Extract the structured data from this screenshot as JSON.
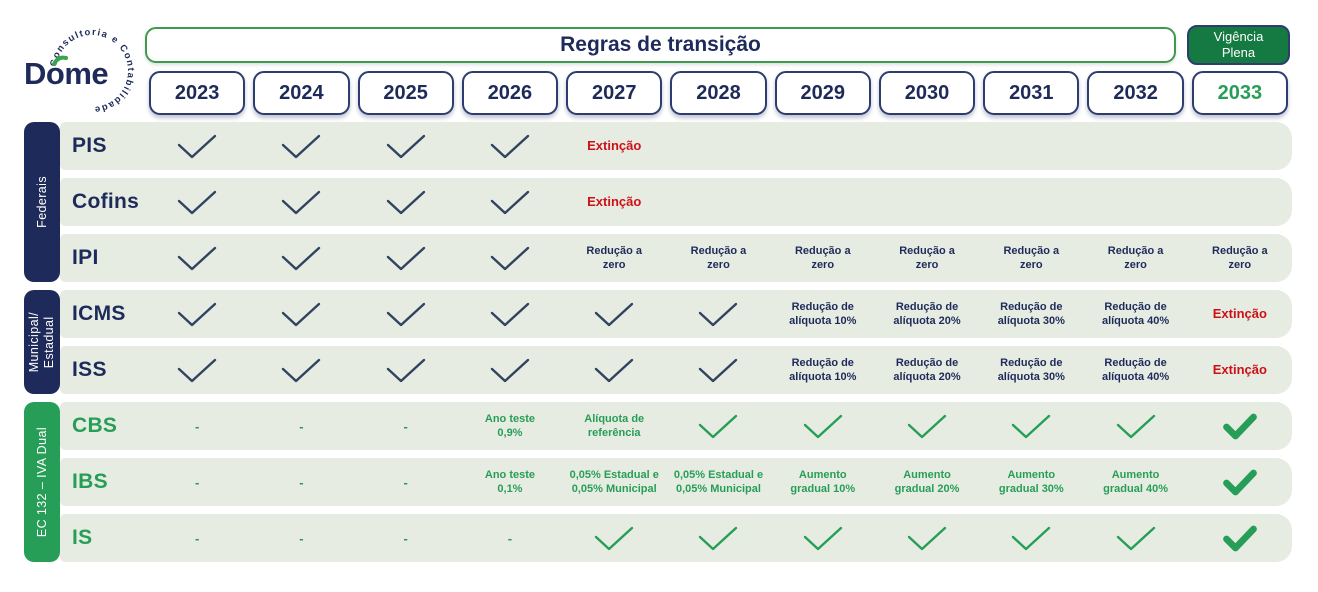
{
  "logo": {
    "brand_parts": {
      "pre": "D",
      "accent_letter": "o",
      "post": "me"
    },
    "accent_icon": "leaf-grave-swoosh",
    "tagline": "Consultoria e Contabilidade"
  },
  "header": {
    "title": "Regras de transição",
    "badge": "Vigência\nPlena"
  },
  "years": [
    "2023",
    "2024",
    "2025",
    "2026",
    "2027",
    "2028",
    "2029",
    "2030",
    "2031",
    "2032",
    "2033"
  ],
  "groups": [
    {
      "id": "federais",
      "label": "Federais"
    },
    {
      "id": "municipal-estadual",
      "label": "Municipal/\nEstadual"
    },
    {
      "id": "ec132-iva-dual",
      "label": "EC 132  –  IVA Dual"
    }
  ],
  "glyphs": {
    "dash": "-"
  },
  "colors": {
    "navy": "#1e2b5a",
    "green": "#279e57",
    "dark_green": "#147a41",
    "red": "#ce1117",
    "row_bg": "#e7ece2",
    "check_navy": "#31435f"
  },
  "rows": [
    {
      "id": "pis",
      "label": "PIS",
      "theme": "navy",
      "cells": [
        {
          "type": "check"
        },
        {
          "type": "check"
        },
        {
          "type": "check"
        },
        {
          "type": "check"
        },
        {
          "type": "text",
          "color": "red",
          "text": "Extinção"
        },
        {
          "type": "empty"
        },
        {
          "type": "empty"
        },
        {
          "type": "empty"
        },
        {
          "type": "empty"
        },
        {
          "type": "empty"
        },
        {
          "type": "empty"
        }
      ]
    },
    {
      "id": "cofins",
      "label": "Cofins",
      "theme": "navy",
      "cells": [
        {
          "type": "check"
        },
        {
          "type": "check"
        },
        {
          "type": "check"
        },
        {
          "type": "check"
        },
        {
          "type": "text",
          "color": "red",
          "text": "Extinção"
        },
        {
          "type": "empty"
        },
        {
          "type": "empty"
        },
        {
          "type": "empty"
        },
        {
          "type": "empty"
        },
        {
          "type": "empty"
        },
        {
          "type": "empty"
        }
      ]
    },
    {
      "id": "ipi",
      "label": "IPI",
      "theme": "navy",
      "cells": [
        {
          "type": "check"
        },
        {
          "type": "check"
        },
        {
          "type": "check"
        },
        {
          "type": "check"
        },
        {
          "type": "text",
          "color": "navy",
          "text": "Redução a\nzero"
        },
        {
          "type": "text",
          "color": "navy",
          "text": "Redução a\nzero"
        },
        {
          "type": "text",
          "color": "navy",
          "text": "Redução a\nzero"
        },
        {
          "type": "text",
          "color": "navy",
          "text": "Redução a\nzero"
        },
        {
          "type": "text",
          "color": "navy",
          "text": "Redução a\nzero"
        },
        {
          "type": "text",
          "color": "navy",
          "text": "Redução a\nzero"
        },
        {
          "type": "text",
          "color": "navy",
          "text": "Redução a\nzero"
        }
      ]
    },
    {
      "id": "icms",
      "label": "ICMS",
      "theme": "navy",
      "cells": [
        {
          "type": "check"
        },
        {
          "type": "check"
        },
        {
          "type": "check"
        },
        {
          "type": "check"
        },
        {
          "type": "check"
        },
        {
          "type": "check"
        },
        {
          "type": "text",
          "color": "navy",
          "text": "Redução de\nalíquota 10%"
        },
        {
          "type": "text",
          "color": "navy",
          "text": "Redução de\nalíquota 20%"
        },
        {
          "type": "text",
          "color": "navy",
          "text": "Redução de\nalíquota 30%"
        },
        {
          "type": "text",
          "color": "navy",
          "text": "Redução de\nalíquota 40%"
        },
        {
          "type": "text",
          "color": "red",
          "text": "Extinção"
        }
      ]
    },
    {
      "id": "iss",
      "label": "ISS",
      "theme": "navy",
      "cells": [
        {
          "type": "check"
        },
        {
          "type": "check"
        },
        {
          "type": "check"
        },
        {
          "type": "check"
        },
        {
          "type": "check"
        },
        {
          "type": "check"
        },
        {
          "type": "text",
          "color": "navy",
          "text": "Redução de\nalíquota 10%"
        },
        {
          "type": "text",
          "color": "navy",
          "text": "Redução de\nalíquota 20%"
        },
        {
          "type": "text",
          "color": "navy",
          "text": "Redução de\nalíquota 30%"
        },
        {
          "type": "text",
          "color": "navy",
          "text": "Redução de\nalíquota 40%"
        },
        {
          "type": "text",
          "color": "red",
          "text": "Extinção"
        }
      ]
    },
    {
      "id": "cbs",
      "label": "CBS",
      "theme": "green",
      "cells": [
        {
          "type": "dash"
        },
        {
          "type": "dash"
        },
        {
          "type": "dash"
        },
        {
          "type": "text",
          "color": "green",
          "text": "Ano teste\n0,9%"
        },
        {
          "type": "text",
          "color": "green",
          "text": "Alíquota de\nreferência"
        },
        {
          "type": "check"
        },
        {
          "type": "check"
        },
        {
          "type": "check"
        },
        {
          "type": "check"
        },
        {
          "type": "check"
        },
        {
          "type": "bigcheck"
        }
      ]
    },
    {
      "id": "ibs",
      "label": "IBS",
      "theme": "green",
      "cells": [
        {
          "type": "dash"
        },
        {
          "type": "dash"
        },
        {
          "type": "dash"
        },
        {
          "type": "text",
          "color": "green",
          "text": "Ano teste\n0,1%"
        },
        {
          "type": "text",
          "color": "green",
          "text": "0,05% Estadual e\n0,05% Municipal"
        },
        {
          "type": "text",
          "color": "green",
          "text": "0,05% Estadual e\n0,05% Municipal"
        },
        {
          "type": "text",
          "color": "green",
          "text": "Aumento\ngradual 10%"
        },
        {
          "type": "text",
          "color": "green",
          "text": "Aumento\ngradual 20%"
        },
        {
          "type": "text",
          "color": "green",
          "text": "Aumento\ngradual 30%"
        },
        {
          "type": "text",
          "color": "green",
          "text": "Aumento\ngradual 40%"
        },
        {
          "type": "bigcheck"
        }
      ]
    },
    {
      "id": "is",
      "label": "IS",
      "theme": "green",
      "cells": [
        {
          "type": "dash"
        },
        {
          "type": "dash"
        },
        {
          "type": "dash"
        },
        {
          "type": "dash"
        },
        {
          "type": "check"
        },
        {
          "type": "check"
        },
        {
          "type": "check"
        },
        {
          "type": "check"
        },
        {
          "type": "check"
        },
        {
          "type": "check"
        },
        {
          "type": "bigcheck"
        }
      ]
    }
  ]
}
